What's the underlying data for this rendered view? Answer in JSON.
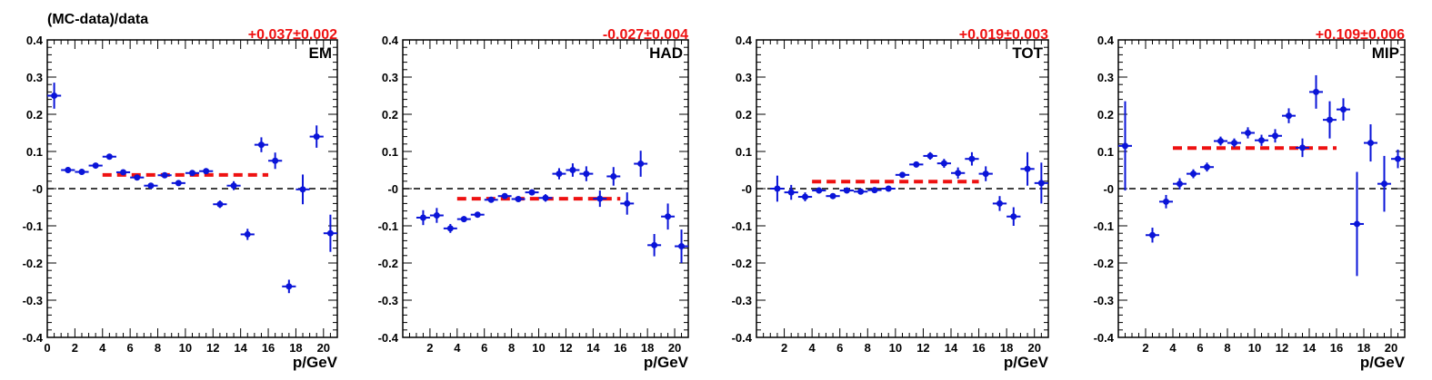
{
  "figure": {
    "ylabel": "(MC-data)/data",
    "colors": {
      "points": "#0a14d8",
      "fit": "#ee1111",
      "zero": "#000000",
      "fit_text": "#ee1111"
    }
  },
  "chart_data": [
    {
      "type": "scatter",
      "panel_label": "EM",
      "fit_label": "+0.037±0.002",
      "xlabel": "p/GeV",
      "ylabel": "(MC-data)/data",
      "xlim": [
        0,
        21
      ],
      "ylim": [
        -0.4,
        0.4
      ],
      "xticks": [
        0,
        2,
        4,
        6,
        8,
        10,
        12,
        14,
        16,
        18,
        20
      ],
      "yticks": [
        -0.4,
        -0.3,
        -0.2,
        -0.1,
        0,
        0.1,
        0.2,
        0.3,
        0.4
      ],
      "ytick_labels": [
        "-0.4",
        "-0.3",
        "-0.2",
        "-0.1",
        "-0",
        "0.1",
        "0.2",
        "0.3",
        "0.4"
      ],
      "fit": {
        "value": 0.037,
        "x_from": 4,
        "x_to": 16
      },
      "points": [
        {
          "x": 0.5,
          "y": 0.25,
          "err": 0.035
        },
        {
          "x": 1.5,
          "y": 0.05,
          "err": 0.008
        },
        {
          "x": 2.5,
          "y": 0.045,
          "err": 0.006
        },
        {
          "x": 3.5,
          "y": 0.062,
          "err": 0.005
        },
        {
          "x": 4.5,
          "y": 0.086,
          "err": 0.005
        },
        {
          "x": 5.5,
          "y": 0.044,
          "err": 0.005
        },
        {
          "x": 6.5,
          "y": 0.03,
          "err": 0.005
        },
        {
          "x": 7.5,
          "y": 0.008,
          "err": 0.005
        },
        {
          "x": 8.5,
          "y": 0.036,
          "err": 0.005
        },
        {
          "x": 9.5,
          "y": 0.015,
          "err": 0.006
        },
        {
          "x": 10.5,
          "y": 0.042,
          "err": 0.007
        },
        {
          "x": 11.5,
          "y": 0.047,
          "err": 0.008
        },
        {
          "x": 12.5,
          "y": -0.042,
          "err": 0.01
        },
        {
          "x": 13.5,
          "y": 0.008,
          "err": 0.012
        },
        {
          "x": 14.5,
          "y": -0.123,
          "err": 0.015
        },
        {
          "x": 15.5,
          "y": 0.118,
          "err": 0.02
        },
        {
          "x": 16.5,
          "y": 0.075,
          "err": 0.022
        },
        {
          "x": 17.5,
          "y": -0.263,
          "err": 0.018
        },
        {
          "x": 18.5,
          "y": -0.002,
          "err": 0.04
        },
        {
          "x": 19.5,
          "y": 0.14,
          "err": 0.03
        },
        {
          "x": 20.5,
          "y": -0.12,
          "err": 0.05
        }
      ]
    },
    {
      "type": "scatter",
      "panel_label": "HAD",
      "fit_label": "-0.027±0.004",
      "xlabel": "p/GeV",
      "ylabel": "",
      "xlim": [
        0,
        21
      ],
      "ylim": [
        -0.4,
        0.4
      ],
      "xticks": [
        2,
        4,
        6,
        8,
        10,
        12,
        14,
        16,
        18,
        20
      ],
      "yticks": [
        -0.4,
        -0.3,
        -0.2,
        -0.1,
        0,
        0.1,
        0.2,
        0.3,
        0.4
      ],
      "ytick_labels": [
        "-0.4",
        "-0.3",
        "-0.2",
        "-0.1",
        "-0",
        "0.1",
        "0.2",
        "0.3",
        "0.4"
      ],
      "fit": {
        "value": -0.027,
        "x_from": 4,
        "x_to": 16
      },
      "points": [
        {
          "x": 1.5,
          "y": -0.078,
          "err": 0.02
        },
        {
          "x": 2.5,
          "y": -0.072,
          "err": 0.02
        },
        {
          "x": 3.5,
          "y": -0.107,
          "err": 0.012
        },
        {
          "x": 4.5,
          "y": -0.082,
          "err": 0.008
        },
        {
          "x": 5.5,
          "y": -0.07,
          "err": 0.007
        },
        {
          "x": 6.5,
          "y": -0.03,
          "err": 0.007
        },
        {
          "x": 7.5,
          "y": -0.02,
          "err": 0.007
        },
        {
          "x": 8.5,
          "y": -0.028,
          "err": 0.007
        },
        {
          "x": 9.5,
          "y": -0.01,
          "err": 0.008
        },
        {
          "x": 10.5,
          "y": -0.025,
          "err": 0.01
        },
        {
          "x": 11.5,
          "y": 0.04,
          "err": 0.015
        },
        {
          "x": 12.5,
          "y": 0.05,
          "err": 0.018
        },
        {
          "x": 13.5,
          "y": 0.04,
          "err": 0.02
        },
        {
          "x": 14.5,
          "y": -0.027,
          "err": 0.022
        },
        {
          "x": 15.5,
          "y": 0.033,
          "err": 0.025
        },
        {
          "x": 16.5,
          "y": -0.04,
          "err": 0.03
        },
        {
          "x": 17.5,
          "y": 0.067,
          "err": 0.035
        },
        {
          "x": 18.5,
          "y": -0.152,
          "err": 0.03
        },
        {
          "x": 19.5,
          "y": -0.075,
          "err": 0.035
        },
        {
          "x": 20.5,
          "y": -0.155,
          "err": 0.045
        }
      ]
    },
    {
      "type": "scatter",
      "panel_label": "TOT",
      "fit_label": "+0.019±0.003",
      "xlabel": "p/GeV",
      "ylabel": "",
      "xlim": [
        0,
        21
      ],
      "ylim": [
        -0.4,
        0.4
      ],
      "xticks": [
        2,
        4,
        6,
        8,
        10,
        12,
        14,
        16,
        18,
        20
      ],
      "yticks": [
        -0.4,
        -0.3,
        -0.2,
        -0.1,
        0,
        0.1,
        0.2,
        0.3,
        0.4
      ],
      "ytick_labels": [
        "-0.4",
        "-0.3",
        "-0.2",
        "-0.1",
        "-0",
        "0.1",
        "0.2",
        "0.3",
        "0.4"
      ],
      "fit": {
        "value": 0.019,
        "x_from": 4,
        "x_to": 16
      },
      "points": [
        {
          "x": 1.5,
          "y": 0.0,
          "err": 0.035
        },
        {
          "x": 2.5,
          "y": -0.01,
          "err": 0.02
        },
        {
          "x": 3.5,
          "y": -0.022,
          "err": 0.012
        },
        {
          "x": 4.5,
          "y": -0.005,
          "err": 0.008
        },
        {
          "x": 5.5,
          "y": -0.02,
          "err": 0.006
        },
        {
          "x": 6.5,
          "y": -0.005,
          "err": 0.005
        },
        {
          "x": 7.5,
          "y": -0.008,
          "err": 0.005
        },
        {
          "x": 8.5,
          "y": -0.004,
          "err": 0.005
        },
        {
          "x": 9.5,
          "y": 0.0,
          "err": 0.006
        },
        {
          "x": 10.5,
          "y": 0.037,
          "err": 0.007
        },
        {
          "x": 11.5,
          "y": 0.065,
          "err": 0.008
        },
        {
          "x": 12.5,
          "y": 0.088,
          "err": 0.01
        },
        {
          "x": 13.5,
          "y": 0.068,
          "err": 0.012
        },
        {
          "x": 14.5,
          "y": 0.042,
          "err": 0.015
        },
        {
          "x": 15.5,
          "y": 0.08,
          "err": 0.018
        },
        {
          "x": 16.5,
          "y": 0.04,
          "err": 0.02
        },
        {
          "x": 17.5,
          "y": -0.04,
          "err": 0.02
        },
        {
          "x": 18.5,
          "y": -0.075,
          "err": 0.025
        },
        {
          "x": 19.5,
          "y": 0.053,
          "err": 0.045
        },
        {
          "x": 20.5,
          "y": 0.015,
          "err": 0.055
        }
      ]
    },
    {
      "type": "scatter",
      "panel_label": "MIP",
      "fit_label": "+0.109±0.006",
      "xlabel": "p/GeV",
      "ylabel": "",
      "xlim": [
        0,
        21
      ],
      "ylim": [
        -0.4,
        0.4
      ],
      "xticks": [
        2,
        4,
        6,
        8,
        10,
        12,
        14,
        16,
        18,
        20
      ],
      "yticks": [
        -0.4,
        -0.3,
        -0.2,
        -0.1,
        0,
        0.1,
        0.2,
        0.3,
        0.4
      ],
      "ytick_labels": [
        "-0.4",
        "-0.3",
        "-0.2",
        "-0.1",
        "-0",
        "0.1",
        "0.2",
        "0.3",
        "0.4"
      ],
      "fit": {
        "value": 0.109,
        "x_from": 4,
        "x_to": 16
      },
      "points": [
        {
          "x": 0.5,
          "y": 0.115,
          "err": 0.12
        },
        {
          "x": 2.5,
          "y": -0.125,
          "err": 0.02
        },
        {
          "x": 3.5,
          "y": -0.035,
          "err": 0.018
        },
        {
          "x": 4.5,
          "y": 0.013,
          "err": 0.015
        },
        {
          "x": 5.5,
          "y": 0.04,
          "err": 0.012
        },
        {
          "x": 6.5,
          "y": 0.058,
          "err": 0.012
        },
        {
          "x": 7.5,
          "y": 0.128,
          "err": 0.012
        },
        {
          "x": 8.5,
          "y": 0.123,
          "err": 0.012
        },
        {
          "x": 9.5,
          "y": 0.15,
          "err": 0.015
        },
        {
          "x": 10.5,
          "y": 0.13,
          "err": 0.015
        },
        {
          "x": 11.5,
          "y": 0.142,
          "err": 0.018
        },
        {
          "x": 12.5,
          "y": 0.196,
          "err": 0.02
        },
        {
          "x": 13.5,
          "y": 0.11,
          "err": 0.025
        },
        {
          "x": 14.5,
          "y": 0.26,
          "err": 0.045
        },
        {
          "x": 15.5,
          "y": 0.185,
          "err": 0.05
        },
        {
          "x": 16.5,
          "y": 0.213,
          "err": 0.03
        },
        {
          "x": 17.5,
          "y": -0.095,
          "err": 0.14
        },
        {
          "x": 18.5,
          "y": 0.123,
          "err": 0.05
        },
        {
          "x": 19.5,
          "y": 0.013,
          "err": 0.075
        },
        {
          "x": 20.5,
          "y": 0.08,
          "err": 0.025
        }
      ]
    }
  ]
}
